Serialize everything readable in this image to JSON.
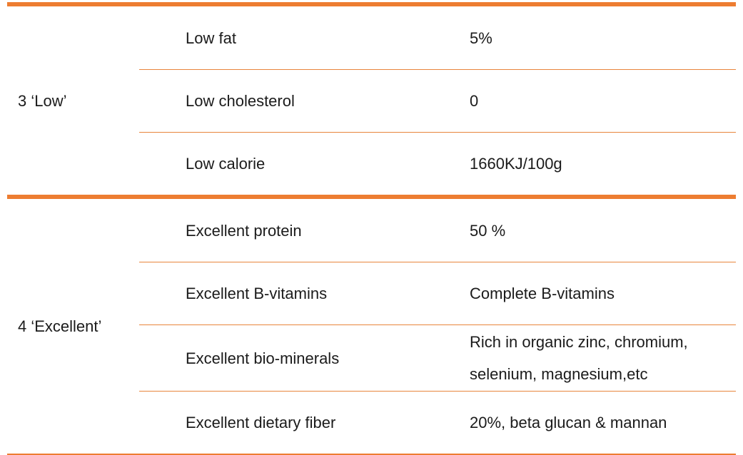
{
  "table": {
    "accent_color": "#ED7D31",
    "groups": [
      {
        "label": "3 ‘Low’",
        "rows": [
          {
            "name": "Low fat",
            "value": "5%"
          },
          {
            "name": "Low cholesterol",
            "value": "0"
          },
          {
            "name": "Low calorie",
            "value": "1660KJ/100g"
          }
        ]
      },
      {
        "label": "4 ‘Excellent’",
        "rows": [
          {
            "name": "Excellent protein",
            "value": "50 %"
          },
          {
            "name": "Excellent B-vitamins",
            "value": "Complete B-vitamins"
          },
          {
            "name": "Excellent bio-minerals",
            "value": "Rich in organic zinc, chromium, selenium, magnesium,etc"
          },
          {
            "name": "Excellent dietary fiber",
            "value": "20%, beta glucan & mannan"
          }
        ]
      }
    ]
  }
}
